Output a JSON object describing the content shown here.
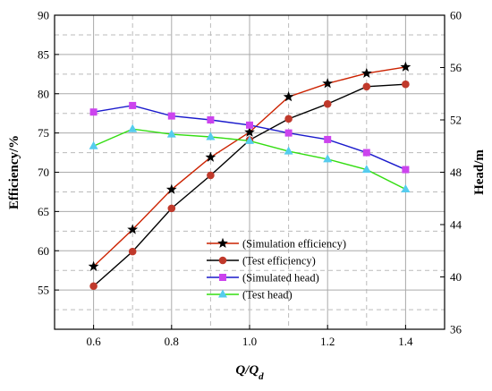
{
  "chart_data": {
    "type": "line",
    "xlabel_main": "Q",
    "xlabel_sub": "d",
    "xlabel_sep": "/Q",
    "ylabel": "Efficiency/%",
    "y2label": "Head/m",
    "xlim": [
      0.5,
      1.5
    ],
    "ylim": [
      50,
      90
    ],
    "y2lim": [
      36,
      60
    ],
    "x_ticks": [
      0.6,
      0.8,
      1.0,
      1.2,
      1.4
    ],
    "x_tick_labels": [
      "0.6",
      "0.8",
      "1.0",
      "1.2",
      "1.4"
    ],
    "y_ticks": [
      55,
      60,
      65,
      70,
      75,
      80,
      85,
      90
    ],
    "y_tick_labels": [
      "55",
      "60",
      "65",
      "70",
      "75",
      "80",
      "85",
      "90"
    ],
    "y2_ticks": [
      36,
      40,
      44,
      48,
      52,
      56,
      60
    ],
    "y2_tick_labels": [
      "36",
      "40",
      "44",
      "48",
      "52",
      "56",
      "60"
    ],
    "grid": true,
    "legend_position": "bottom-center",
    "x": [
      0.6,
      0.7,
      0.8,
      0.9,
      1.0,
      1.1,
      1.2,
      1.3,
      1.4
    ],
    "series": [
      {
        "name": "(Simulation efficiency)",
        "axis": "left",
        "color": "#cc2200",
        "marker": "star",
        "marker_color": "#000000",
        "values": [
          58.0,
          62.7,
          67.8,
          71.9,
          75.1,
          79.6,
          81.3,
          82.6,
          83.4
        ]
      },
      {
        "name": "(Test efficiency)",
        "axis": "left",
        "color": "#000000",
        "marker": "circle",
        "marker_color": "#c0392b",
        "values": [
          55.5,
          59.9,
          65.4,
          69.6,
          74.1,
          76.8,
          78.7,
          80.9,
          81.2
        ]
      },
      {
        "name": "(Simulated head)",
        "axis": "right",
        "color": "#1a1acc",
        "marker": "square",
        "marker_color": "#cc44ee",
        "values": [
          52.6,
          53.1,
          52.3,
          52.0,
          51.6,
          51.0,
          50.5,
          49.5,
          48.2
        ]
      },
      {
        "name": "(Test head)",
        "axis": "right",
        "color": "#33dd11",
        "marker": "triangle",
        "marker_color": "#55ccee",
        "values": [
          50.0,
          51.3,
          50.9,
          50.7,
          50.4,
          49.6,
          49.0,
          48.2,
          46.7
        ]
      }
    ]
  }
}
